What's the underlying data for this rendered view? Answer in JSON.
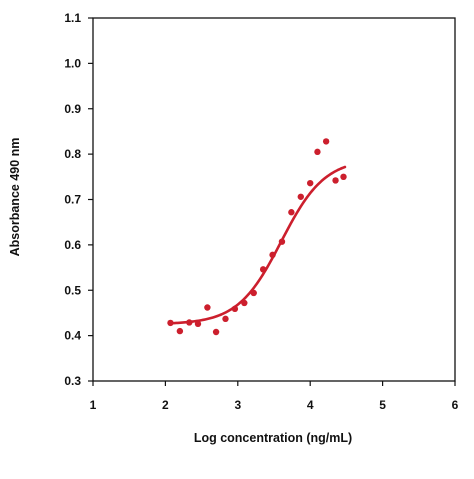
{
  "chart_data": {
    "type": "scatter",
    "title": "",
    "xlabel": "Log concentration (ng/mL)",
    "ylabel": "Absorbance 490 nm",
    "xlim": [
      1,
      6
    ],
    "ylim": [
      0.3,
      1.1
    ],
    "x_ticks": [
      1,
      2,
      3,
      4,
      5,
      6
    ],
    "y_ticks": [
      0.3,
      0.4,
      0.5,
      0.6,
      0.7,
      0.8,
      0.9,
      1.0,
      1.1
    ],
    "x_tick_labels": [
      "1",
      "2",
      "3",
      "4",
      "5",
      "6"
    ],
    "y_tick_labels": [
      "0.3",
      "0.4",
      "0.5",
      "0.6",
      "0.7",
      "0.8",
      "0.9",
      "1.0",
      "1.1"
    ],
    "grid": false,
    "color": "#cc1f2d",
    "points": [
      {
        "x": 2.07,
        "y": 0.428
      },
      {
        "x": 2.2,
        "y": 0.41
      },
      {
        "x": 2.33,
        "y": 0.429
      },
      {
        "x": 2.45,
        "y": 0.426
      },
      {
        "x": 2.58,
        "y": 0.462
      },
      {
        "x": 2.7,
        "y": 0.408
      },
      {
        "x": 2.83,
        "y": 0.437
      },
      {
        "x": 2.96,
        "y": 0.459
      },
      {
        "x": 3.09,
        "y": 0.472
      },
      {
        "x": 3.22,
        "y": 0.494
      },
      {
        "x": 3.35,
        "y": 0.546
      },
      {
        "x": 3.48,
        "y": 0.578
      },
      {
        "x": 3.61,
        "y": 0.607
      },
      {
        "x": 3.74,
        "y": 0.672
      },
      {
        "x": 3.87,
        "y": 0.706
      },
      {
        "x": 4.0,
        "y": 0.736
      },
      {
        "x": 4.1,
        "y": 0.805
      },
      {
        "x": 4.22,
        "y": 0.828
      },
      {
        "x": 4.35,
        "y": 0.742
      },
      {
        "x": 4.46,
        "y": 0.75
      }
    ],
    "fit_curve": {
      "bottom": 0.425,
      "top": 0.79,
      "ec50_log": 3.6,
      "hill_slope": 1.45,
      "x_start": 2.05,
      "x_end": 4.48
    }
  }
}
